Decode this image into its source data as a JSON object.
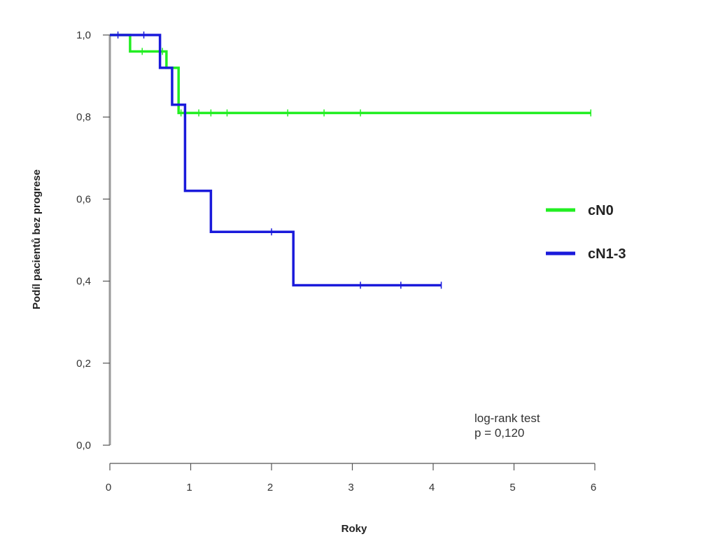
{
  "chart_data": {
    "type": "line",
    "step": true,
    "title": "",
    "xlabel": "Roky",
    "ylabel": "Podíl pacientů bez progrese",
    "xlim": [
      0,
      6
    ],
    "ylim": [
      0,
      1
    ],
    "x_ticks": [
      0,
      1,
      2,
      3,
      4,
      5,
      6
    ],
    "x_tick_labels": [
      "0",
      "1",
      "2",
      "3",
      "4",
      "5",
      "6"
    ],
    "y_ticks": [
      0,
      0.2,
      0.4,
      0.6,
      0.8,
      1.0
    ],
    "y_tick_labels": [
      "0,0",
      "0,2",
      "0,4",
      "0,6",
      "0,8",
      "1,0"
    ],
    "grid": false,
    "legend_position": "right",
    "series": [
      {
        "name": "cN0",
        "color": "#22ee22",
        "steps": [
          [
            0,
            1.0
          ],
          [
            0.25,
            0.96
          ],
          [
            0.7,
            0.92
          ],
          [
            0.85,
            0.81
          ],
          [
            5.95,
            0.81
          ]
        ],
        "censor": [
          0.4,
          0.65,
          0.88,
          1.1,
          1.25,
          1.45,
          2.2,
          2.65,
          3.1,
          5.95
        ]
      },
      {
        "name": "cN1-3",
        "color": "#1a1adb",
        "steps": [
          [
            0,
            1.0
          ],
          [
            0.62,
            0.92
          ],
          [
            0.77,
            0.83
          ],
          [
            0.93,
            0.62
          ],
          [
            1.25,
            0.52
          ],
          [
            2.27,
            0.39
          ],
          [
            4.1,
            0.39
          ]
        ],
        "censor": [
          0.1,
          0.42,
          2.0,
          3.1,
          3.6,
          4.1
        ]
      }
    ],
    "annotations": [
      "log-rank test",
      "p = 0,120"
    ]
  }
}
